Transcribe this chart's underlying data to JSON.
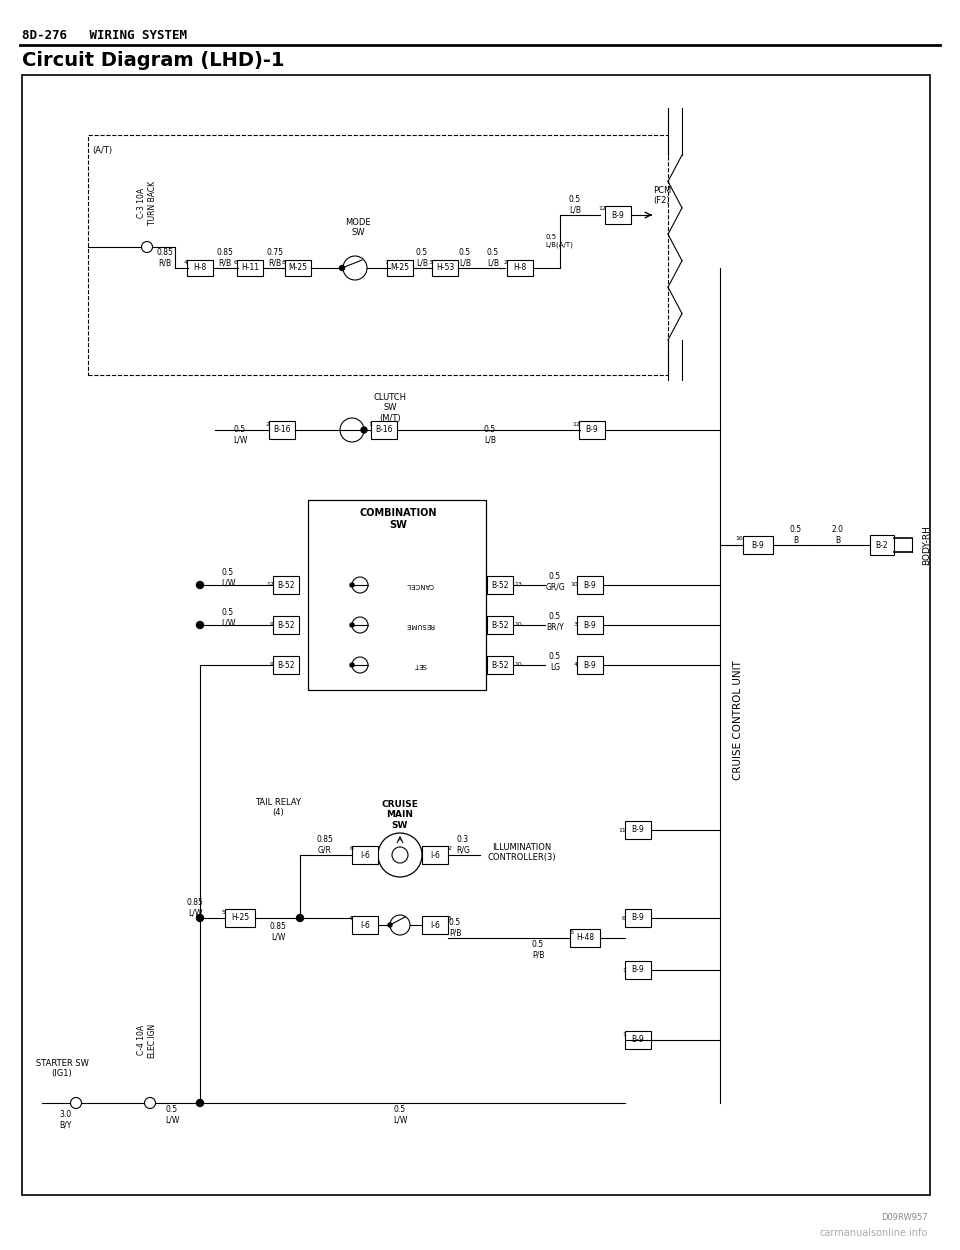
{
  "header_text": "8D-276   WIRING SYSTEM",
  "title_text": "Circuit Diagram (LHD)-1",
  "watermark": "carmanualsonline.info",
  "doc_number": "D09RW957",
  "bg_color": "#ffffff",
  "line_color": "#000000",
  "diagram_font_size": 6.0
}
